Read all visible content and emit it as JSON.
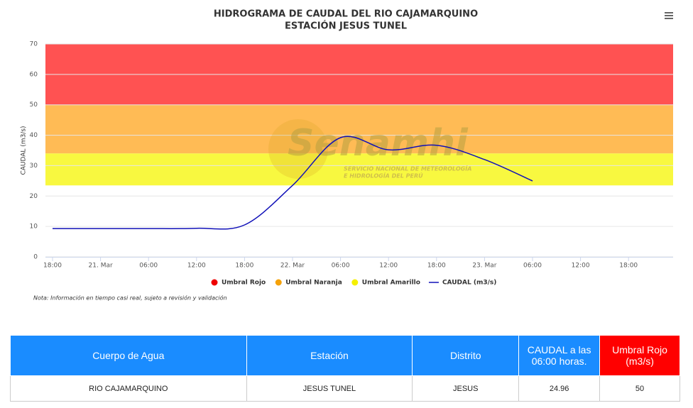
{
  "chart_data": {
    "type": "line",
    "title": "HIDROGRAMA DE CAUDAL DEL RIO CAJAMARQUINO",
    "subtitle": "ESTACIÓN JESUS TUNEL",
    "y_axis_label": "CAUDAL (m3/s)",
    "note": "Nota: Información en tiempo casi real, sujeto a revisión y validación",
    "watermark": {
      "name": "Senamhi",
      "line1": "SERVICIO NACIONAL DE METEOROLOGÍA",
      "line2": "E HIDROLOGÍA DEL PERÚ"
    },
    "categories": [
      "18:00",
      "21. Mar",
      "06:00",
      "12:00",
      "18:00",
      "22. Mar",
      "06:00",
      "12:00",
      "18:00",
      "23. Mar",
      "06:00",
      "12:00",
      "18:00"
    ],
    "series": [
      {
        "name": "CAUDAL (m3/s)",
        "color": "#1010b8",
        "values": [
          9.3,
          9.3,
          9.3,
          9.4,
          10.5,
          23.5,
          39.2,
          35.2,
          36.7,
          32,
          24.96,
          null,
          null
        ]
      }
    ],
    "bands": [
      {
        "name": "Umbral Rojo",
        "color": "#ff5252",
        "legend_color": "#ee0000",
        "from": 50,
        "to": 70
      },
      {
        "name": "Umbral Naranja",
        "color": "#ffbb55",
        "legend_color": "#f5a20a",
        "from": 34,
        "to": 50
      },
      {
        "name": "Umbral Amarillo",
        "color": "#f8f840",
        "legend_color": "#f5f000",
        "from": 23.5,
        "to": 34
      }
    ],
    "ylim": [
      0,
      70
    ],
    "yticks": [
      0,
      10,
      20,
      30,
      40,
      50,
      60,
      70
    ],
    "grid": true
  },
  "table": {
    "headers": [
      "Cuerpo de Agua",
      "Estación",
      "Distrito",
      "CAUDAL a las 06:00 horas.",
      "Umbral Rojo (m3/s)"
    ],
    "rows": [
      [
        "RIO CAJAMARQUINO",
        "JESUS TUNEL",
        "JESUS",
        "24.96",
        "50"
      ]
    ]
  }
}
